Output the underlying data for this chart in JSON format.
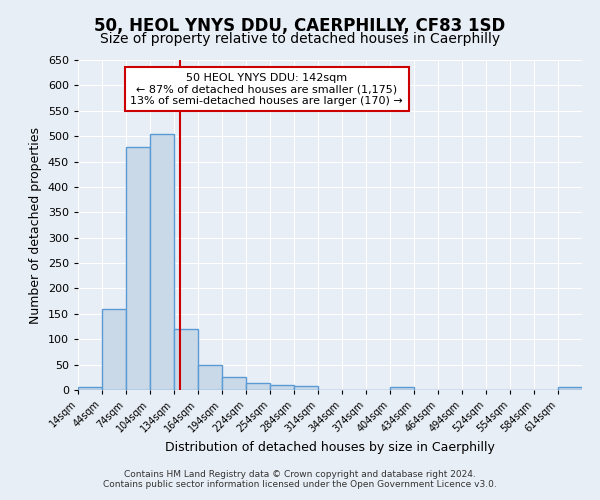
{
  "title": "50, HEOL YNYS DDU, CAERPHILLY, CF83 1SD",
  "subtitle": "Size of property relative to detached houses in Caerphilly",
  "xlabel": "Distribution of detached houses by size in Caerphilly",
  "ylabel": "Number of detached properties",
  "categories": [
    "14sqm",
    "44sqm",
    "74sqm",
    "104sqm",
    "134sqm",
    "164sqm",
    "194sqm",
    "224sqm",
    "254sqm",
    "284sqm",
    "314sqm",
    "344sqm",
    "374sqm",
    "404sqm",
    "434sqm",
    "464sqm",
    "494sqm",
    "524sqm",
    "554sqm",
    "584sqm",
    "614sqm"
  ],
  "values": [
    5,
    160,
    478,
    505,
    120,
    50,
    25,
    13,
    10,
    8,
    0,
    0,
    0,
    6,
    0,
    0,
    0,
    0,
    0,
    0,
    5
  ],
  "bar_color": "#c9d9e8",
  "bar_edge_color": "#5b9bd5",
  "bar_edge_width": 1.0,
  "vline_x": 142,
  "vline_color": "#cc0000",
  "annotation_text": "50 HEOL YNYS DDU: 142sqm\n← 87% of detached houses are smaller (1,175)\n13% of semi-detached houses are larger (170) →",
  "annotation_box_color": "#ffffff",
  "annotation_box_edge_color": "#cc0000",
  "ylim": [
    0,
    650
  ],
  "yticks": [
    0,
    50,
    100,
    150,
    200,
    250,
    300,
    350,
    400,
    450,
    500,
    550,
    600,
    650
  ],
  "background_color": "#e8eef5",
  "grid_color": "#ffffff",
  "footer_line1": "Contains HM Land Registry data © Crown copyright and database right 2024.",
  "footer_line2": "Contains public sector information licensed under the Open Government Licence v3.0.",
  "bin_width": 30,
  "title_fontsize": 12,
  "subtitle_fontsize": 10
}
